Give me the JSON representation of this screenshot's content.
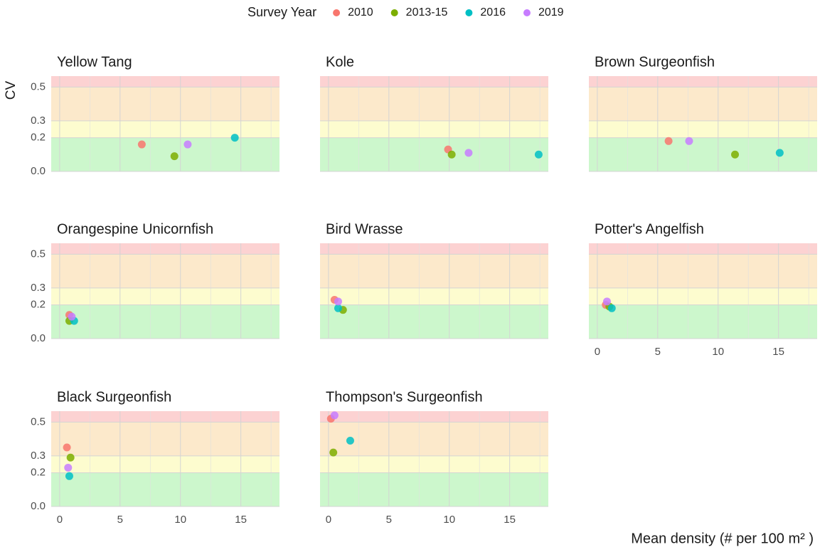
{
  "chart_data": {
    "type": "scatter",
    "legend_title": "Survey Year",
    "xlabel": "Mean density (# per 100 m² )",
    "ylabel": "CV",
    "series": [
      {
        "name": "2010",
        "color": "#F8766D"
      },
      {
        "name": "2013-15",
        "color": "#7CAE00"
      },
      {
        "name": "2016",
        "color": "#00BFC4"
      },
      {
        "name": "2019",
        "color": "#C77CFF"
      }
    ],
    "xlim": [
      -0.7,
      18.2
    ],
    "xticks": [
      0,
      5,
      10,
      15
    ],
    "ylim": [
      0,
      0.565
    ],
    "yticks": [
      {
        "value": 0,
        "label": "0.0"
      },
      0.2,
      0.3,
      0.5
    ],
    "grid": true,
    "bands": [
      {
        "from": 0,
        "color": "#ccf7cc"
      },
      {
        "from": 0.2,
        "color": "#fdfccf"
      },
      {
        "from": 0.3,
        "color": "#fce9cb"
      },
      {
        "from": 0.5,
        "color": "#fcd2d2"
      }
    ],
    "facets": [
      {
        "title": "Yellow Tang",
        "x": [
          6.8,
          9.5,
          14.5,
          10.6
        ],
        "values": [
          0.16,
          0.09,
          0.2,
          0.16
        ]
      },
      {
        "title": "Kole",
        "x": [
          9.9,
          10.2,
          17.4,
          11.6
        ],
        "values": [
          0.13,
          0.1,
          0.1,
          0.11
        ]
      },
      {
        "title": "Brown Surgeonfish",
        "x": [
          5.9,
          11.4,
          15.1,
          7.6
        ],
        "values": [
          0.18,
          0.1,
          0.11,
          0.18
        ]
      },
      {
        "title": "Orangespine Unicornfish",
        "x": [
          0.8,
          0.8,
          1.2,
          1.0
        ],
        "values": [
          0.14,
          0.105,
          0.105,
          0.13
        ]
      },
      {
        "title": "Bird Wrasse",
        "x": [
          0.5,
          1.2,
          0.8,
          0.8
        ],
        "values": [
          0.23,
          0.17,
          0.18,
          0.22
        ]
      },
      {
        "title": "Potter's Angelfish",
        "x": [
          0.7,
          1.0,
          1.2,
          0.8
        ],
        "values": [
          0.2,
          0.19,
          0.18,
          0.22
        ]
      },
      {
        "title": "Black Surgeonfish",
        "x": [
          0.6,
          0.9,
          0.8,
          0.7
        ],
        "values": [
          0.35,
          0.29,
          0.18,
          0.23
        ]
      },
      {
        "title": "Thompson's Surgeonfish",
        "x": [
          0.2,
          0.4,
          1.8,
          0.5
        ],
        "values": [
          0.52,
          0.32,
          0.39,
          0.54
        ]
      }
    ]
  }
}
